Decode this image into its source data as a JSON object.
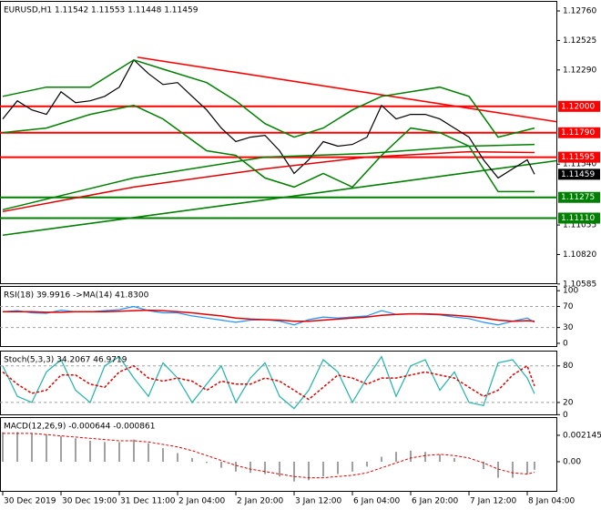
{
  "chart_data": [
    {
      "type": "line",
      "title": "EURUSD,H1  1.11542 1.11553 1.11448 1.11459",
      "x": [
        0,
        4,
        8,
        12,
        16,
        20,
        24,
        28,
        32,
        36,
        40,
        44,
        48,
        52,
        56,
        60,
        64,
        68,
        72,
        76,
        80,
        84,
        88,
        92,
        96,
        100,
        104,
        108,
        112,
        116,
        120,
        124,
        128,
        132,
        136,
        140,
        144,
        146
      ],
      "xlim": [
        -0.75,
        152.25
      ],
      "ylim": [
        1.10584,
        1.1284
      ],
      "yticks": [
        {
          "value": 1.1276,
          "label": "1.12760"
        },
        {
          "value": 1.12525,
          "label": "1.12525"
        },
        {
          "value": 1.1229,
          "label": "1.12290"
        },
        {
          "value": 1.1154,
          "label": "1.11540"
        },
        {
          "value": 1.11055,
          "label": "1.11055"
        },
        {
          "value": 1.1082,
          "label": "1.10820"
        },
        {
          "value": 1.10585,
          "label": "1.10585"
        }
      ],
      "series": [
        {
          "color": "#000000",
          "values": [
            1.119,
            1.12044,
            1.11972,
            1.11936,
            1.12116,
            1.1203,
            1.12044,
            1.1208,
            1.12153,
            1.1237,
            1.12261,
            1.12174,
            1.12189,
            1.1208,
            1.11972,
            1.11827,
            1.11719,
            1.11755,
            1.11769,
            1.11647,
            1.11466,
            1.11574,
            1.11719,
            1.11683,
            1.11697,
            1.11755,
            1.12008,
            1.119,
            1.11936,
            1.11936,
            1.119,
            1.11827,
            1.11755,
            1.11574,
            1.1143,
            1.11502,
            1.11574,
            1.11459
          ]
        },
        {
          "color": "#e00000",
          "x": [
            0,
            36,
            72,
            100,
            128,
            146
          ],
          "values": [
            1.11162,
            1.11357,
            1.11502,
            1.11596,
            1.11639,
            1.11632
          ]
        },
        {
          "color": "#008000",
          "x": [
            0,
            36,
            72,
            100,
            128,
            146
          ],
          "values": [
            1.11177,
            1.1143,
            1.11596,
            1.11625,
            1.11683,
            1.11697
          ]
        },
        {
          "color": "#008000",
          "x": [
            0,
            12,
            24,
            36,
            44,
            56,
            64,
            72,
            80,
            88,
            96,
            104,
            112,
            120,
            128,
            136,
            146
          ],
          "values": [
            1.1208,
            1.12153,
            1.12153,
            1.1237,
            1.12297,
            1.12189,
            1.12044,
            1.11863,
            1.11755,
            1.11827,
            1.11972,
            1.1208,
            1.12116,
            1.12153,
            1.1208,
            1.11755,
            1.11827
          ]
        },
        {
          "color": "#008000",
          "x": [
            0,
            12,
            24,
            36,
            44,
            56,
            64,
            72,
            80,
            88,
            96,
            104,
            112,
            120,
            128,
            136,
            146
          ],
          "values": [
            1.11791,
            1.11827,
            1.11936,
            1.12008,
            1.119,
            1.11647,
            1.1161,
            1.1143,
            1.11357,
            1.11466,
            1.11357,
            1.1161,
            1.11827,
            1.11791,
            1.11683,
            1.11321,
            1.11321
          ]
        }
      ],
      "trendlines": [
        {
          "x": [
            37,
            152
          ],
          "values": [
            1.12391,
            1.11878
          ],
          "color": "#ff0000"
        },
        {
          "x": [
            0,
            152
          ],
          "values": [
            1.10974,
            1.11567
          ],
          "color": "#008000"
        }
      ],
      "levels": [
        {
          "value": 1.12,
          "label": "1.12000",
          "color": "#ff0000"
        },
        {
          "value": 1.1179,
          "label": "1.11790",
          "color": "#ff0000"
        },
        {
          "value": 1.11595,
          "label": "1.11595",
          "color": "#ff0000"
        },
        {
          "value": 1.11275,
          "label": "1.11275",
          "color": "#008000"
        },
        {
          "value": 1.1111,
          "label": "1.11110",
          "color": "#008000"
        }
      ],
      "last_price": {
        "value": 1.11459,
        "label": "1.11459",
        "color": "#000000"
      }
    },
    {
      "type": "line",
      "title": "RSI(18) 39.9916  ->MA(14) 41.8300",
      "x": [
        0,
        4,
        8,
        12,
        16,
        20,
        24,
        28,
        32,
        36,
        40,
        44,
        48,
        52,
        56,
        60,
        64,
        68,
        72,
        76,
        80,
        84,
        88,
        92,
        96,
        100,
        104,
        108,
        112,
        116,
        120,
        124,
        128,
        132,
        136,
        140,
        144,
        146
      ],
      "xlim": [
        -0.75,
        152.25
      ],
      "ylim": [
        -7,
        109
      ],
      "yticks": [
        100,
        70,
        30,
        0
      ],
      "level_lines": [
        70,
        30
      ],
      "series": [
        {
          "color": "#1e90ff",
          "values": [
            60,
            62,
            58,
            57,
            63,
            60,
            60,
            62,
            64,
            70,
            62,
            58,
            58,
            52,
            48,
            44,
            40,
            44,
            45,
            42,
            35,
            45,
            50,
            48,
            50,
            52,
            62,
            55,
            56,
            55,
            54,
            50,
            47,
            40,
            35,
            42,
            48,
            39.9916
          ]
        },
        {
          "color": "#e00000",
          "values": [
            60,
            60,
            60,
            59,
            59,
            60,
            60,
            60,
            61,
            62,
            63,
            62,
            60,
            58,
            55,
            52,
            48,
            46,
            45,
            44,
            42,
            42,
            44,
            46,
            48,
            50,
            53,
            55,
            56,
            56,
            55,
            53,
            51,
            48,
            44,
            42,
            43,
            41.83
          ]
        }
      ]
    },
    {
      "type": "line",
      "title": "Stoch(5,3,3) 34.2067 46.9719",
      "x": [
        0,
        4,
        8,
        12,
        16,
        20,
        24,
        28,
        32,
        36,
        40,
        44,
        48,
        52,
        56,
        60,
        64,
        68,
        72,
        76,
        80,
        84,
        88,
        92,
        96,
        100,
        104,
        108,
        112,
        116,
        120,
        124,
        128,
        132,
        136,
        140,
        144,
        146
      ],
      "xlim": [
        -0.75,
        152.25
      ],
      "ylim": [
        -1,
        105
      ],
      "yticks": [
        80,
        20,
        0
      ],
      "level_lines": [
        80,
        20
      ],
      "series": [
        {
          "color": "#20b2aa",
          "values": [
            80,
            30,
            20,
            70,
            90,
            40,
            20,
            80,
            95,
            60,
            30,
            85,
            60,
            20,
            50,
            80,
            20,
            60,
            85,
            30,
            10,
            40,
            90,
            70,
            20,
            60,
            95,
            30,
            80,
            90,
            40,
            70,
            20,
            15,
            85,
            90,
            60,
            34.2067
          ]
        },
        {
          "color": "#e00000",
          "dashed": true,
          "values": [
            70,
            50,
            35,
            40,
            65,
            65,
            50,
            45,
            70,
            80,
            60,
            55,
            60,
            55,
            40,
            55,
            50,
            50,
            60,
            55,
            40,
            25,
            45,
            65,
            60,
            50,
            60,
            60,
            65,
            70,
            65,
            60,
            45,
            30,
            40,
            65,
            80,
            46.9719
          ]
        }
      ]
    },
    {
      "type": "bar",
      "title": "MACD(12,26,9) -0.000644 -0.000861",
      "x": [
        0,
        4,
        8,
        12,
        16,
        20,
        24,
        28,
        32,
        36,
        40,
        44,
        48,
        52,
        56,
        60,
        64,
        68,
        72,
        76,
        80,
        84,
        88,
        92,
        96,
        100,
        104,
        108,
        112,
        116,
        120,
        124,
        128,
        132,
        136,
        140,
        144,
        146
      ],
      "xlim": [
        -0.75,
        152.25
      ],
      "ylim": [
        -0.00244,
        0.00362
      ],
      "yticks": [
        {
          "value": 0.002145,
          "label": "0.002145"
        },
        {
          "value": 0,
          "label": "0.00"
        }
      ],
      "xticks": [
        {
          "value": 0,
          "label": "30 Dec 2019"
        },
        {
          "value": 16,
          "label": "30 Dec 19:00"
        },
        {
          "value": 32,
          "label": "31 Dec 11:00"
        },
        {
          "value": 48,
          "label": "2 Jan 04:00"
        },
        {
          "value": 64,
          "label": "2 Jan 20:00"
        },
        {
          "value": 80,
          "label": "3 Jan 12:00"
        },
        {
          "value": 96,
          "label": "6 Jan 04:00"
        },
        {
          "value": 112,
          "label": "6 Jan 20:00"
        },
        {
          "value": 128,
          "label": "7 Jan 12:00"
        },
        {
          "value": 144,
          "label": "8 Jan 04:00"
        }
      ],
      "series": [
        {
          "color": "#a0a0a0",
          "values": [
            0.0024,
            0.0024,
            0.0023,
            0.0022,
            0.0021,
            0.0019,
            0.0017,
            0.0016,
            0.0016,
            0.0018,
            0.0015,
            0.0011,
            0.0007,
            0.0003,
            -0.0001,
            -0.0005,
            -0.0008,
            -0.0009,
            -0.001,
            -0.0012,
            -0.0016,
            -0.0015,
            -0.0012,
            -0.001,
            -0.0008,
            -0.0004,
            0.0004,
            0.0008,
            0.0009,
            0.0008,
            0.0006,
            0.0003,
            0,
            -0.0006,
            -0.0013,
            -0.0013,
            -0.001,
            -0.000644
          ]
        },
        {
          "color": "#e00000",
          "dashed": true,
          "values": [
            0.0023,
            0.0023,
            0.0023,
            0.0022,
            0.0021,
            0.002,
            0.0019,
            0.0018,
            0.0017,
            0.0017,
            0.0016,
            0.0014,
            0.0012,
            0.0009,
            0.0005,
            0.0001,
            -0.0003,
            -0.0006,
            -0.0008,
            -0.001,
            -0.0012,
            -0.0013,
            -0.0013,
            -0.0012,
            -0.0011,
            -0.0009,
            -0.0005,
            -0.0001,
            0.0003,
            0.0005,
            0.0006,
            0.0005,
            0.0003,
            -0.0001,
            -0.0006,
            -0.0009,
            -0.001,
            -0.000861
          ]
        }
      ]
    }
  ]
}
